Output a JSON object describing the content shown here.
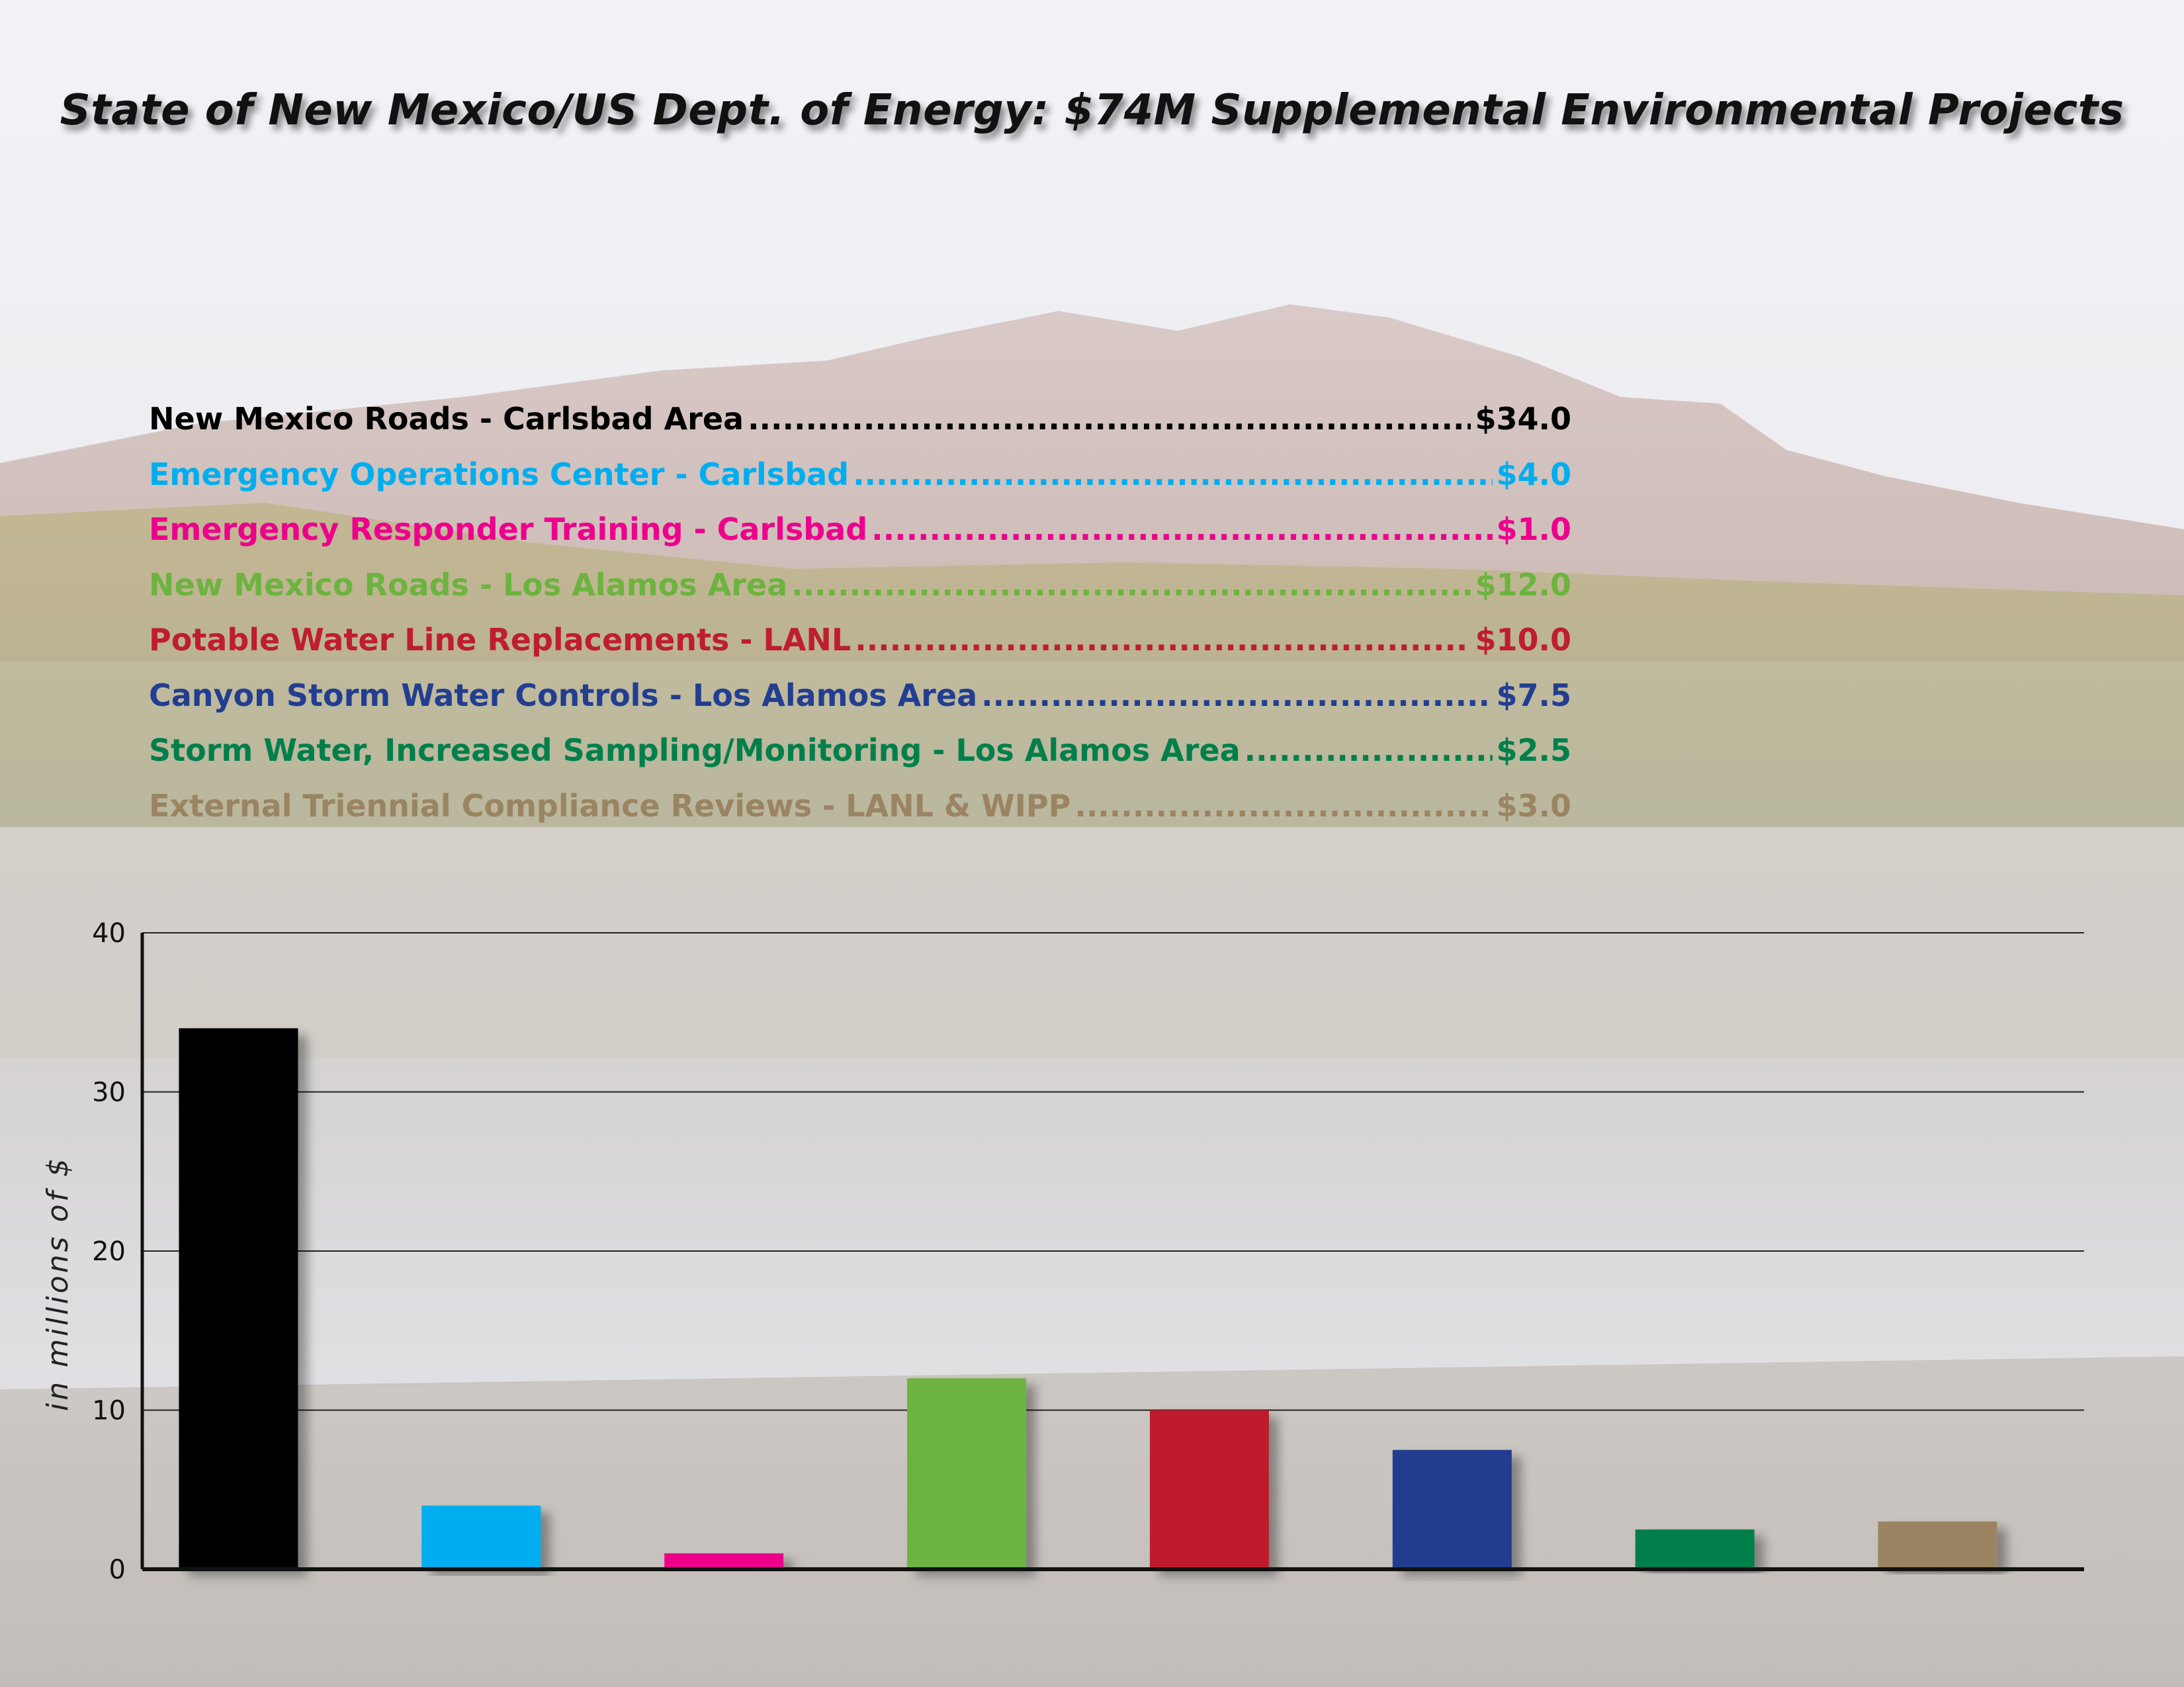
{
  "header": {
    "title": "State of New Mexico/US Dept. of Energy: $74M Supplemental Environmental Projects"
  },
  "projects": [
    {
      "label": "New Mexico Roads - Carlsbad Area",
      "amount": "$34.0",
      "color": "#000000"
    },
    {
      "label": "Emergency Operations Center - Carlsbad",
      "amount": "$4.0",
      "color": "#00aeef"
    },
    {
      "label": "Emergency Responder Training - Carlsbad",
      "amount": "$1.0",
      "color": "#ec008c"
    },
    {
      "label": "New Mexico Roads - Los Alamos Area",
      "amount": "$12.0",
      "color": "#6db33f"
    },
    {
      "label": "Potable Water Line Replacements - LANL",
      "amount": "$10.0",
      "color": "#be1e2d"
    },
    {
      "label": "Canyon Storm Water Controls - Los Alamos Area",
      "amount": "$7.5",
      "color": "#233e90"
    },
    {
      "label": "Storm Water, Increased Sampling/Monitoring - Los Alamos Area",
      "amount": "$2.5",
      "color": "#007f4b"
    },
    {
      "label": "External Triennial Compliance Reviews - LANL & WIPP",
      "amount": "$3.0",
      "color": "#9a8462"
    }
  ],
  "chart_data": {
    "type": "bar",
    "categories": [
      "",
      "",
      "",
      "",
      "",
      "",
      "",
      ""
    ],
    "values": [
      34,
      4,
      1,
      12,
      10,
      7.5,
      2.5,
      3
    ],
    "colors": [
      "#000000",
      "#00aeef",
      "#ec008c",
      "#6db33f",
      "#be1e2d",
      "#233e90",
      "#007f4b",
      "#9a8462"
    ],
    "ylabel": "in millions of $",
    "ylim": [
      0,
      40
    ],
    "yticks": [
      "0",
      "10",
      "20",
      "30",
      "40"
    ],
    "grid": true,
    "legend": "above"
  }
}
